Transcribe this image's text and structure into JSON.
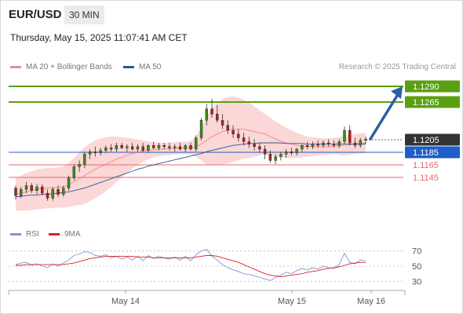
{
  "header": {
    "symbol": "EUR/USD",
    "timeframe": "30 MIN",
    "datetime": "Thursday, May 15, 2025 11:07:41 AM CET"
  },
  "legend": {
    "ma20_label": "MA 20 + Bollinger Bands",
    "ma50_label": "MA 50",
    "rsi_label": "RSI",
    "rsi_ma_label": "9MA",
    "credit": "Research © 2025 Trading Central"
  },
  "colors": {
    "ma20": "#f08a8a",
    "ma50": "#2f5597",
    "bands": "#f9c9c9",
    "rsi": "#7b96d6",
    "rsi_ma": "#dd2222",
    "target": "#5aa012",
    "current": "#333333",
    "pivot": "#1f5dc7",
    "support": "#e56b6b",
    "arrow": "#2e5ea3",
    "candle_up": "#3f8b18",
    "candle_down": "#b02020"
  },
  "chart_data": {
    "type": "candlestick",
    "symbol": "EUR/USD",
    "interval": "30 MIN",
    "x_labels": [
      "May 14",
      "May 15",
      "May 16"
    ],
    "price_levels": [
      {
        "value": 1.129,
        "label": "1.1290",
        "role": "target"
      },
      {
        "value": 1.1265,
        "label": "1.1265",
        "role": "target"
      },
      {
        "value": 1.1205,
        "label": "1.1205",
        "role": "current"
      },
      {
        "value": 1.1185,
        "label": "1.1185",
        "role": "pivot"
      },
      {
        "value": 1.1165,
        "label": "1.1165",
        "role": "support"
      },
      {
        "value": 1.1145,
        "label": "1.1145",
        "role": "support"
      }
    ],
    "price_range": [
      1.109,
      1.1305
    ],
    "candles": [
      [
        1.1128,
        1.1132,
        1.111,
        1.1116
      ],
      [
        1.1116,
        1.113,
        1.1112,
        1.1126
      ],
      [
        1.1126,
        1.1138,
        1.112,
        1.1132
      ],
      [
        1.1132,
        1.1136,
        1.112,
        1.1124
      ],
      [
        1.1124,
        1.1134,
        1.1118,
        1.113
      ],
      [
        1.113,
        1.1134,
        1.1116,
        1.112
      ],
      [
        1.112,
        1.1126,
        1.1108,
        1.1112
      ],
      [
        1.1112,
        1.113,
        1.1108,
        1.1126
      ],
      [
        1.1126,
        1.1132,
        1.1114,
        1.1118
      ],
      [
        1.1118,
        1.1132,
        1.1114,
        1.1128
      ],
      [
        1.1128,
        1.1148,
        1.1124,
        1.1144
      ],
      [
        1.1144,
        1.1166,
        1.114,
        1.1162
      ],
      [
        1.1162,
        1.1172,
        1.1154,
        1.1166
      ],
      [
        1.1166,
        1.1186,
        1.116,
        1.1182
      ],
      [
        1.1182,
        1.119,
        1.1174,
        1.1186
      ],
      [
        1.1186,
        1.1194,
        1.1178,
        1.1184
      ],
      [
        1.1184,
        1.1192,
        1.118,
        1.1188
      ],
      [
        1.1188,
        1.1196,
        1.1184,
        1.1192
      ],
      [
        1.1192,
        1.1198,
        1.1186,
        1.119
      ],
      [
        1.119,
        1.12,
        1.1186,
        1.1196
      ],
      [
        1.1196,
        1.12,
        1.119,
        1.1192
      ],
      [
        1.1192,
        1.1198,
        1.1186,
        1.1194
      ],
      [
        1.1194,
        1.12,
        1.1188,
        1.119
      ],
      [
        1.119,
        1.1198,
        1.1184,
        1.1194
      ],
      [
        1.1194,
        1.12,
        1.1186,
        1.1188
      ],
      [
        1.1188,
        1.1198,
        1.1184,
        1.1196
      ],
      [
        1.1196,
        1.1202,
        1.119,
        1.1192
      ],
      [
        1.1192,
        1.12,
        1.1188,
        1.1196
      ],
      [
        1.1196,
        1.12,
        1.119,
        1.1194
      ],
      [
        1.1194,
        1.12,
        1.1188,
        1.1192
      ],
      [
        1.1192,
        1.1198,
        1.1186,
        1.1194
      ],
      [
        1.1194,
        1.12,
        1.1188,
        1.119
      ],
      [
        1.119,
        1.1198,
        1.1186,
        1.1196
      ],
      [
        1.1196,
        1.12,
        1.1188,
        1.119
      ],
      [
        1.119,
        1.1212,
        1.1186,
        1.1208
      ],
      [
        1.1208,
        1.124,
        1.1204,
        1.1236
      ],
      [
        1.1236,
        1.1262,
        1.1228,
        1.1254
      ],
      [
        1.1254,
        1.127,
        1.124,
        1.1246
      ],
      [
        1.1246,
        1.126,
        1.1232,
        1.1236
      ],
      [
        1.1236,
        1.1246,
        1.1222,
        1.1228
      ],
      [
        1.1228,
        1.1236,
        1.1214,
        1.122
      ],
      [
        1.122,
        1.1228,
        1.1208,
        1.1214
      ],
      [
        1.1214,
        1.1222,
        1.1202,
        1.1208
      ],
      [
        1.1208,
        1.1216,
        1.1196,
        1.1202
      ],
      [
        1.1202,
        1.121,
        1.1192,
        1.1198
      ],
      [
        1.1198,
        1.1206,
        1.1188,
        1.1194
      ],
      [
        1.1194,
        1.12,
        1.1184,
        1.119
      ],
      [
        1.119,
        1.1196,
        1.1174,
        1.1182
      ],
      [
        1.1182,
        1.1188,
        1.1168,
        1.1172
      ],
      [
        1.1172,
        1.1182,
        1.1166,
        1.1178
      ],
      [
        1.1178,
        1.1186,
        1.1172,
        1.1182
      ],
      [
        1.1182,
        1.119,
        1.1176,
        1.1186
      ],
      [
        1.1186,
        1.1192,
        1.118,
        1.1184
      ],
      [
        1.1184,
        1.1192,
        1.118,
        1.119
      ],
      [
        1.119,
        1.1198,
        1.1186,
        1.1196
      ],
      [
        1.1196,
        1.1202,
        1.119,
        1.1194
      ],
      [
        1.1194,
        1.1202,
        1.119,
        1.1198
      ],
      [
        1.1198,
        1.1204,
        1.1192,
        1.1196
      ],
      [
        1.1196,
        1.1204,
        1.1192,
        1.12
      ],
      [
        1.12,
        1.1206,
        1.1194,
        1.1198
      ],
      [
        1.1198,
        1.1204,
        1.1192,
        1.1196
      ],
      [
        1.1196,
        1.1206,
        1.1192,
        1.1202
      ],
      [
        1.1202,
        1.1226,
        1.1198,
        1.122
      ],
      [
        1.122,
        1.1228,
        1.1196,
        1.12
      ],
      [
        1.12,
        1.1208,
        1.1192,
        1.1196
      ],
      [
        1.1196,
        1.1208,
        1.1192,
        1.1204
      ],
      [
        1.1204,
        1.121,
        1.1198,
        1.1206
      ]
    ],
    "ma20": [
      1.1118,
      1.112,
      1.1122,
      1.1124,
      1.1126,
      1.1127,
      1.1128,
      1.1128,
      1.1129,
      1.113,
      1.1133,
      1.1138,
      1.1143,
      1.1148,
      1.1153,
      1.1158,
      1.1162,
      1.1166,
      1.117,
      1.1174,
      1.1177,
      1.118,
      1.1183,
      1.1185,
      1.1187,
      1.1188,
      1.1189,
      1.119,
      1.119,
      1.1191,
      1.1191,
      1.1192,
      1.1192,
      1.1192,
      1.1194,
      1.1198,
      1.1204,
      1.121,
      1.1214,
      1.1218,
      1.122,
      1.1222,
      1.1222,
      1.1222,
      1.122,
      1.1218,
      1.1216,
      1.1214,
      1.121,
      1.1206,
      1.1203,
      1.12,
      1.1198,
      1.1196,
      1.1195,
      1.1194,
      1.1194,
      1.1194,
      1.1194,
      1.1194,
      1.1195,
      1.1195,
      1.1196,
      1.1197,
      1.1198,
      1.1199,
      1.12
    ],
    "ma50": [
      1.1114,
      1.1115,
      1.1116,
      1.1117,
      1.1117,
      1.1118,
      1.1118,
      1.1119,
      1.112,
      1.1121,
      1.1122,
      1.1124,
      1.1126,
      1.1128,
      1.1131,
      1.1134,
      1.1137,
      1.114,
      1.1143,
      1.1146,
      1.1149,
      1.1152,
      1.1155,
      1.1158,
      1.116,
      1.1163,
      1.1165,
      1.1167,
      1.1169,
      1.1171,
      1.1173,
      1.1175,
      1.1177,
      1.1179,
      1.1181,
      1.1183,
      1.1186,
      1.1188,
      1.119,
      1.1192,
      1.1194,
      1.1196,
      1.1197,
      1.1198,
      1.1199,
      1.1199,
      1.12,
      1.12,
      1.12,
      1.12,
      1.12,
      1.1199,
      1.1199,
      1.1199,
      1.1199,
      1.1198,
      1.1198,
      1.1198,
      1.1198,
      1.1198,
      1.1198,
      1.1198,
      1.1198,
      1.1198,
      1.1198,
      1.1198,
      1.1198
    ],
    "band_width": [
      0.0026,
      0.0028,
      0.003,
      0.0031,
      0.0032,
      0.0032,
      0.0032,
      0.0032,
      0.0032,
      0.0033,
      0.0035,
      0.0038,
      0.0042,
      0.0045,
      0.0046,
      0.0046,
      0.0045,
      0.0043,
      0.004,
      0.0036,
      0.0032,
      0.0028,
      0.0024,
      0.002,
      0.0017,
      0.0014,
      0.0012,
      0.0011,
      0.001,
      0.001,
      0.001,
      0.001,
      0.001,
      0.0011,
      0.0016,
      0.0026,
      0.0038,
      0.0046,
      0.005,
      0.0052,
      0.0053,
      0.0052,
      0.005,
      0.0047,
      0.0044,
      0.004,
      0.0036,
      0.0032,
      0.003,
      0.0028,
      0.0026,
      0.0024,
      0.0022,
      0.002,
      0.0018,
      0.0016,
      0.0015,
      0.0014,
      0.0013,
      0.0013,
      0.0013,
      0.0014,
      0.0016,
      0.0016,
      0.0016,
      0.0016,
      0.0016
    ],
    "forecast_arrow": {
      "from": 1.1205,
      "to": 1.129
    },
    "rsi_panel": {
      "levels": [
        70,
        50,
        30
      ],
      "range": [
        20,
        80
      ],
      "rsi": [
        52,
        54,
        55,
        51,
        53,
        50,
        48,
        53,
        50,
        54,
        58,
        64,
        66,
        69,
        68,
        64,
        63,
        65,
        61,
        63,
        59,
        62,
        58,
        63,
        57,
        64,
        60,
        63,
        61,
        59,
        62,
        58,
        63,
        57,
        65,
        70,
        72,
        63,
        58,
        52,
        48,
        45,
        43,
        40,
        39,
        37,
        35,
        33,
        31,
        35,
        38,
        42,
        40,
        44,
        47,
        45,
        48,
        46,
        50,
        48,
        47,
        52,
        67,
        55,
        53,
        58,
        57
      ],
      "ma9": [
        51,
        51,
        52,
        52,
        52,
        52,
        52,
        52,
        52,
        52,
        53,
        54,
        56,
        58,
        60,
        61,
        62,
        63,
        63,
        63,
        63,
        63,
        63,
        62,
        62,
        62,
        61,
        61,
        61,
        61,
        61,
        61,
        61,
        61,
        62,
        63,
        64,
        64,
        63,
        61,
        59,
        57,
        55,
        52,
        49,
        46,
        43,
        40,
        38,
        37,
        36,
        37,
        38,
        39,
        40,
        42,
        43,
        44,
        46,
        47,
        48,
        49,
        51,
        53,
        54,
        55,
        55
      ]
    }
  }
}
